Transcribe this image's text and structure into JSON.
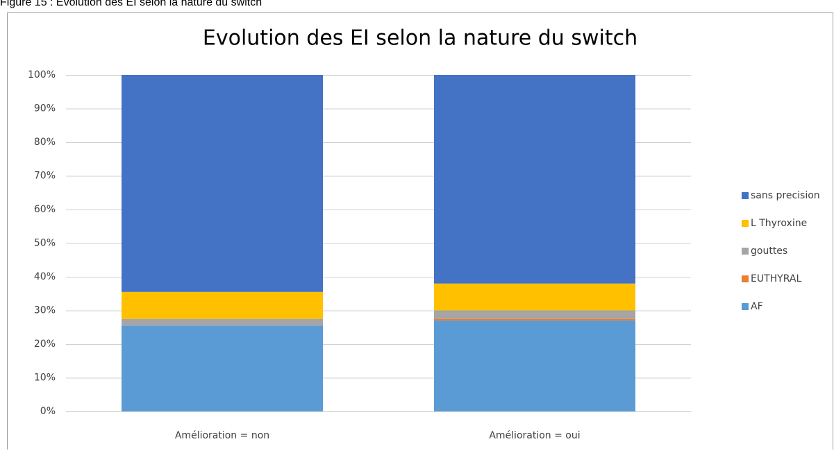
{
  "caption": "Figure 15 : Evolution des EI selon la nature du switch",
  "chart_data": {
    "type": "stacked-bar",
    "title": "Evolution des EI selon la nature du switch",
    "categories": [
      "Amélioration = non",
      "Amélioration = oui"
    ],
    "series": [
      {
        "name": "AF",
        "color": "#5b9bd5",
        "values": [
          25.5,
          27
        ]
      },
      {
        "name": "EUTHYRAL",
        "color": "#ed7d31",
        "values": [
          0,
          0.5
        ]
      },
      {
        "name": "gouttes",
        "color": "#a5a5a5",
        "values": [
          2,
          2.5
        ]
      },
      {
        "name": "L Thyroxine",
        "color": "#ffc000",
        "values": [
          8,
          8
        ]
      },
      {
        "name": "sans precision",
        "color": "#4472c4",
        "values": [
          64.5,
          62
        ]
      }
    ],
    "ylim": [
      0,
      100
    ],
    "yticks": [
      {
        "value": 0,
        "label": "0%"
      },
      {
        "value": 10,
        "label": "10%"
      },
      {
        "value": 20,
        "label": "20%"
      },
      {
        "value": 30,
        "label": "30%"
      },
      {
        "value": 40,
        "label": "40%"
      },
      {
        "value": 50,
        "label": "50%"
      },
      {
        "value": 60,
        "label": "60%"
      },
      {
        "value": 70,
        "label": "70%"
      },
      {
        "value": 80,
        "label": "80%"
      },
      {
        "value": 90,
        "label": "90%"
      },
      {
        "value": 100,
        "label": "100%"
      }
    ],
    "grid": true,
    "legend": "right"
  }
}
